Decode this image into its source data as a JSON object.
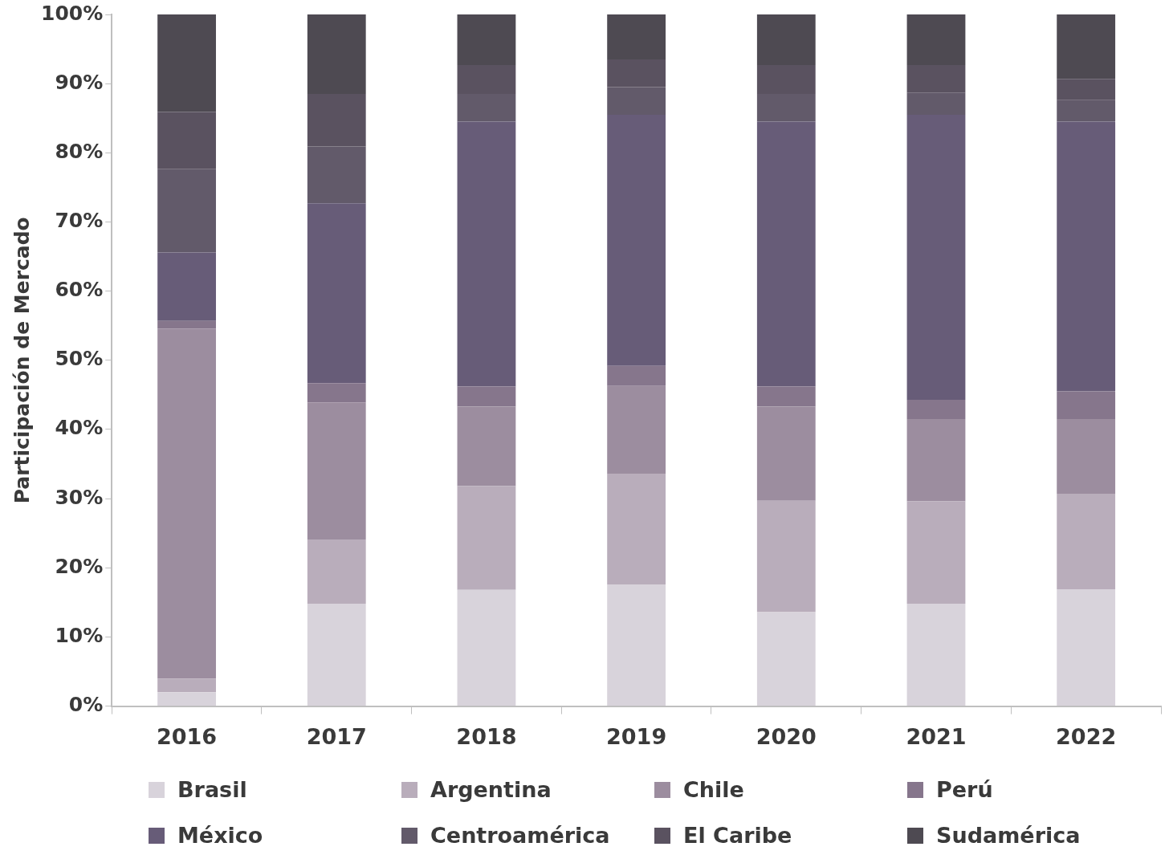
{
  "chart_data": {
    "type": "bar",
    "stacked": true,
    "ylabel": "Participación de Mercado",
    "categories": [
      "2016",
      "2017",
      "2018",
      "2019",
      "2020",
      "2021",
      "2022"
    ],
    "ylim": [
      0,
      100
    ],
    "yticks": [
      {
        "value": 0,
        "label": "0%"
      },
      {
        "value": 10,
        "label": "10%"
      },
      {
        "value": 20,
        "label": "20%"
      },
      {
        "value": 30,
        "label": "30%"
      },
      {
        "value": 40,
        "label": "40%"
      },
      {
        "value": 50,
        "label": "50%"
      },
      {
        "value": 60,
        "label": "60%"
      },
      {
        "value": 70,
        "label": "70%"
      },
      {
        "value": 80,
        "label": "80%"
      },
      {
        "value": 90,
        "label": "90%"
      },
      {
        "value": 100,
        "label": "100%"
      }
    ],
    "grid": false,
    "legend": "bottom",
    "series": [
      {
        "name": "Brasil",
        "color": "#d8d3db",
        "values": [
          2.0,
          14.8,
          16.8,
          17.6,
          13.6,
          14.8,
          16.9
        ]
      },
      {
        "name": "Argentina",
        "color": "#b9adbb",
        "values": [
          2.0,
          9.3,
          15.0,
          16.0,
          16.1,
          14.8,
          13.8
        ]
      },
      {
        "name": "Chile",
        "color": "#9c8d9f",
        "values": [
          50.6,
          19.8,
          11.5,
          12.7,
          13.6,
          11.9,
          10.8
        ]
      },
      {
        "name": "Perú",
        "color": "#86768c",
        "values": [
          1.1,
          2.8,
          2.9,
          2.9,
          2.9,
          2.8,
          4.0
        ]
      },
      {
        "name": "México",
        "color": "#675c78",
        "values": [
          9.9,
          26.0,
          38.3,
          36.3,
          38.3,
          41.2,
          39.0
        ]
      },
      {
        "name": "Centroamérica",
        "color": "#625a6a",
        "values": [
          12.1,
          8.2,
          4.0,
          4.0,
          4.0,
          3.2,
          3.1
        ]
      },
      {
        "name": "El Caribe",
        "color": "#5a5260",
        "values": [
          8.2,
          7.6,
          4.2,
          4.0,
          4.2,
          4.0,
          3.1
        ]
      },
      {
        "name": "Sudamérica",
        "color": "#4e4a52",
        "values": [
          14.1,
          11.5,
          7.3,
          6.5,
          7.3,
          7.3,
          9.3
        ]
      }
    ]
  }
}
